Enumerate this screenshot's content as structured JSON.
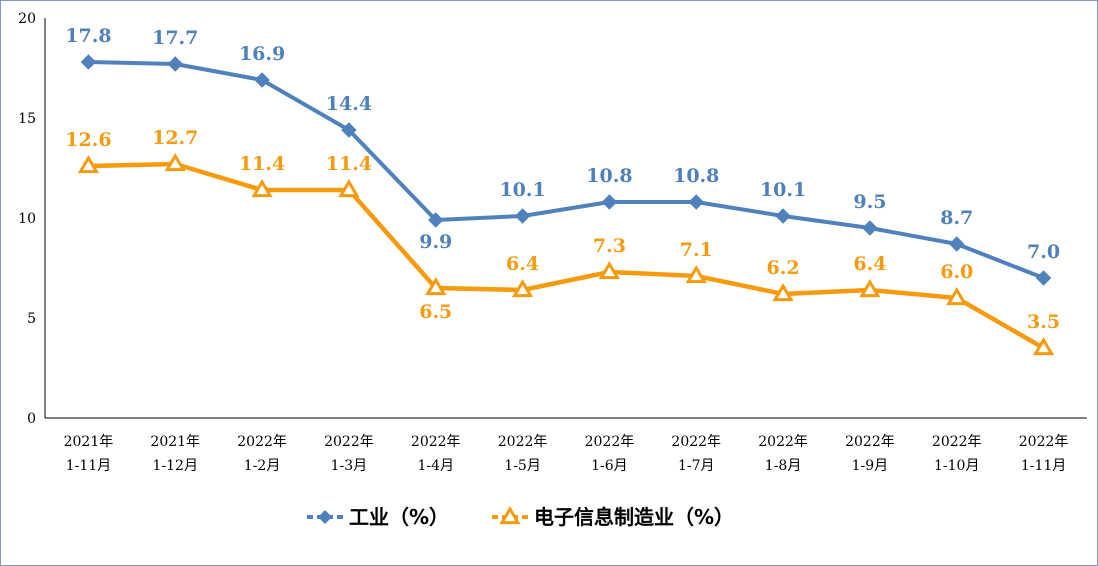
{
  "chart_data": {
    "type": "line",
    "ylim": [
      0,
      20
    ],
    "yticks": [
      "0",
      "5",
      "10",
      "15",
      "20"
    ],
    "categories": [
      [
        "2021年",
        "1-11月"
      ],
      [
        "2021年",
        "1-12月"
      ],
      [
        "2022年",
        "1-2月"
      ],
      [
        "2022年",
        "1-3月"
      ],
      [
        "2022年",
        "1-4月"
      ],
      [
        "2022年",
        "1-5月"
      ],
      [
        "2022年",
        "1-6月"
      ],
      [
        "2022年",
        "1-7月"
      ],
      [
        "2022年",
        "1-8月"
      ],
      [
        "2022年",
        "1-9月"
      ],
      [
        "2022年",
        "1-10月"
      ],
      [
        "2022年",
        "1-11月"
      ]
    ],
    "series": [
      {
        "name": "工业（%）",
        "color": "#4F81BD",
        "marker": "diamond",
        "values": [
          17.8,
          17.7,
          16.9,
          14.4,
          9.9,
          10.1,
          10.8,
          10.8,
          10.1,
          9.5,
          8.7,
          7.0
        ],
        "labels": [
          "17.8",
          "17.7",
          "16.9",
          "14.4",
          "9.9",
          "10.1",
          "10.8",
          "10.8",
          "10.1",
          "9.5",
          "8.7",
          "7.0"
        ]
      },
      {
        "name": "电子信息制造业（%）",
        "color": "#F79A0E",
        "marker": "triangle",
        "values": [
          12.6,
          12.7,
          11.4,
          11.4,
          6.5,
          6.4,
          7.3,
          7.1,
          6.2,
          6.4,
          6.0,
          3.5
        ],
        "labels": [
          "12.6",
          "12.7",
          "11.4",
          "11.4",
          "6.5",
          "6.4",
          "7.3",
          "7.1",
          "6.2",
          "6.4",
          "6.0",
          "3.5"
        ]
      }
    ],
    "grid": false,
    "legend_position": "bottom-center"
  }
}
